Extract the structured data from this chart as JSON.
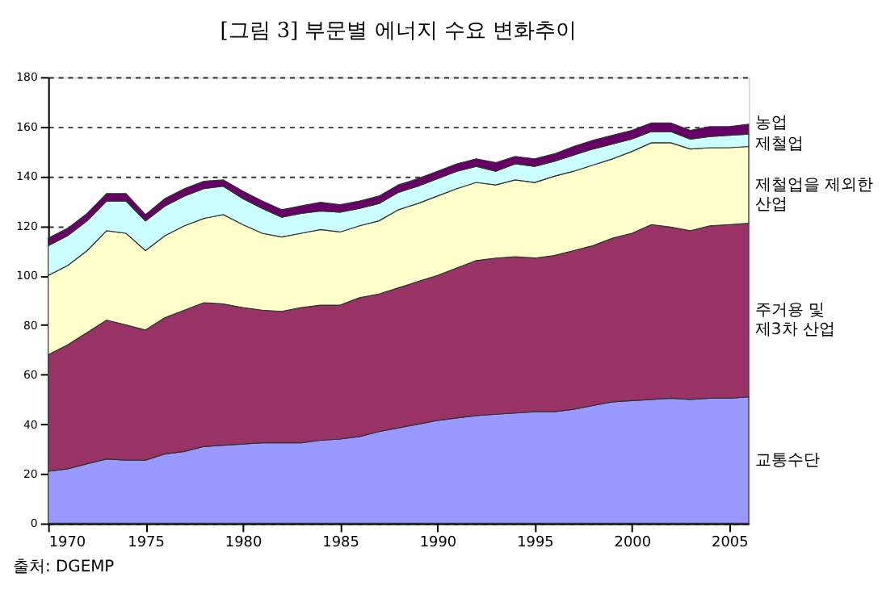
{
  "chart_data": {
    "type": "area",
    "stacked": true,
    "title": "[그림 3] 부문별 에너지 수요 변화추이",
    "x": [
      1970,
      1971,
      1972,
      1973,
      1974,
      1975,
      1976,
      1977,
      1978,
      1979,
      1980,
      1981,
      1982,
      1983,
      1984,
      1985,
      1986,
      1987,
      1988,
      1989,
      1990,
      1991,
      1992,
      1993,
      1994,
      1995,
      1996,
      1997,
      1998,
      1999,
      2000,
      2001,
      2002,
      2003,
      2004,
      2005,
      2006
    ],
    "series": [
      {
        "name": "교통수단",
        "color": "#9999ff",
        "values": [
          21,
          22,
          24,
          26,
          25.5,
          25.5,
          28,
          29,
          31,
          31.5,
          32,
          32.5,
          32.5,
          32.5,
          33.5,
          34,
          35,
          37,
          38.5,
          40,
          41.5,
          42.5,
          43.5,
          44,
          44.5,
          45,
          45,
          46,
          47.5,
          49,
          49.5,
          50,
          50.5,
          50,
          50.5,
          50.5,
          51
        ]
      },
      {
        "name": "주거용 및 제3차 산업",
        "color": "#993366",
        "values": [
          47,
          50,
          53,
          56,
          54.5,
          52.5,
          55,
          57,
          58,
          57,
          55,
          53.5,
          53,
          54.5,
          54.5,
          54,
          56,
          55.5,
          56.5,
          57.5,
          58.5,
          60.5,
          62.5,
          63,
          63,
          62,
          63,
          64,
          64.5,
          66,
          67.5,
          70.5,
          69,
          68,
          69.5,
          70,
          70
        ]
      },
      {
        "name": "제철업을 제외한 산업",
        "color": "#ffffcc",
        "values": [
          32,
          32,
          33,
          36,
          37,
          32,
          33,
          34,
          34,
          36,
          33.5,
          31,
          30,
          30,
          30.5,
          29.5,
          29,
          29.5,
          31.5,
          31.5,
          32,
          32,
          31.5,
          29.5,
          31,
          30.5,
          32,
          32,
          32.5,
          32,
          33,
          33,
          34,
          33,
          31.5,
          31,
          31
        ]
      },
      {
        "name": "제철업",
        "color": "#ccffff",
        "values": [
          12,
          12,
          12,
          12,
          13,
          12,
          12,
          12,
          12,
          11.5,
          10.5,
          10,
          8,
          8,
          7.5,
          8,
          7,
          7,
          7,
          7,
          7,
          7,
          6.5,
          5.5,
          6.5,
          6.5,
          6,
          6.5,
          6.5,
          6,
          5,
          4.5,
          4.5,
          4,
          4.5,
          5,
          5
        ]
      },
      {
        "name": "농업",
        "color": "#660066",
        "values": [
          3,
          3,
          3,
          3,
          3,
          2.5,
          3,
          3,
          3,
          2.5,
          3,
          3,
          3,
          3,
          3.5,
          3,
          3,
          3,
          3,
          3,
          3,
          3,
          3,
          3.5,
          3,
          3,
          3,
          3.5,
          3.5,
          3.5,
          3.5,
          3.5,
          3.5,
          3.5,
          4,
          3.5,
          4
        ]
      }
    ],
    "xlim": [
      1970,
      2006
    ],
    "xticks": [
      1970,
      1975,
      1980,
      1985,
      1990,
      1995,
      2000,
      2005
    ],
    "ylim": [
      0,
      180
    ],
    "yticks": [
      0,
      20,
      40,
      60,
      80,
      100,
      120,
      140,
      160,
      180
    ],
    "grid": "y",
    "legend": "right",
    "annotations": [
      "출처: DGEMP"
    ]
  }
}
